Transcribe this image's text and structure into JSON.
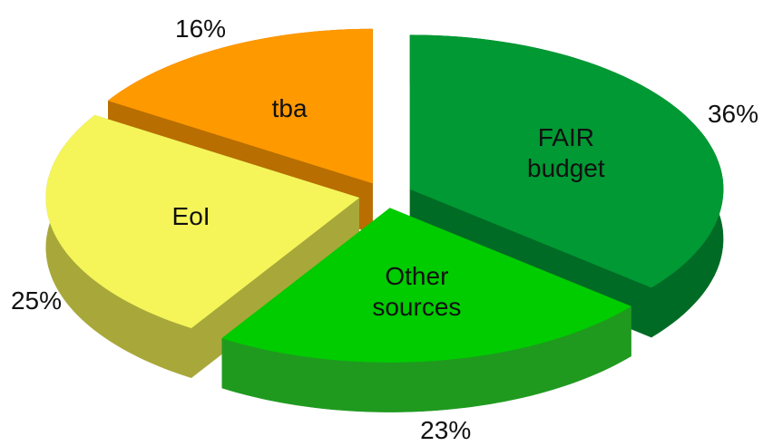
{
  "chart_data": {
    "type": "pie3d",
    "categories": [
      "FAIR budget",
      "Other sources",
      "EoI",
      "tba"
    ],
    "values": [
      36,
      23,
      25,
      16
    ],
    "value_labels": [
      "36%",
      "23%",
      "25%",
      "16%"
    ],
    "colors": [
      "#009933",
      "#00cc00",
      "#f5f55a",
      "#ff9900"
    ],
    "side_colors": [
      "#006b24",
      "#1f9a1f",
      "#a8a83a",
      "#b86e00"
    ]
  }
}
